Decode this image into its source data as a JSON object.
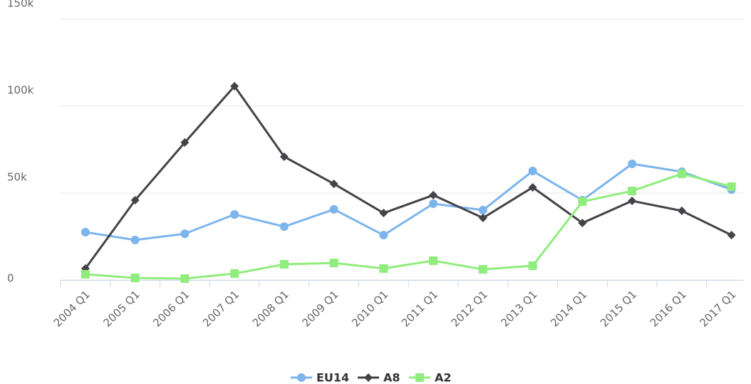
{
  "chart_data": {
    "type": "line",
    "categories": [
      "2004 Q1",
      "2005 Q1",
      "2006 Q1",
      "2007 Q1",
      "2008 Q1",
      "2009 Q1",
      "2010 Q1",
      "2011 Q1",
      "2012 Q1",
      "2013 Q1",
      "2014 Q1",
      "2015 Q1",
      "2016 Q1",
      "2017 Q1"
    ],
    "series": [
      {
        "name": "EU14",
        "color": "#7cb5ec",
        "marker": "circle",
        "values": [
          27500,
          23000,
          26600,
          37700,
          30700,
          40600,
          25800,
          43900,
          40200,
          62700,
          45900,
          66800,
          62300,
          52000
        ]
      },
      {
        "name": "A8",
        "color": "#434348",
        "marker": "diamond",
        "values": [
          6600,
          45900,
          79100,
          111500,
          70900,
          55300,
          38500,
          48800,
          35700,
          53300,
          32800,
          45500,
          39800,
          25800
        ]
      },
      {
        "name": "A2",
        "color": "#90ed7d",
        "marker": "square",
        "values": [
          3300,
          1200,
          800,
          3700,
          9000,
          9800,
          6600,
          11100,
          6100,
          8200,
          45100,
          51200,
          61100,
          53700
        ]
      }
    ],
    "ylim": [
      0,
      150000
    ],
    "yticks": [
      {
        "value": 0,
        "label": "0"
      },
      {
        "value": 50000,
        "label": "50k"
      },
      {
        "value": 100000,
        "label": "100k"
      },
      {
        "value": 150000,
        "label": "150k"
      }
    ],
    "grid": true,
    "legend": "bottom"
  }
}
